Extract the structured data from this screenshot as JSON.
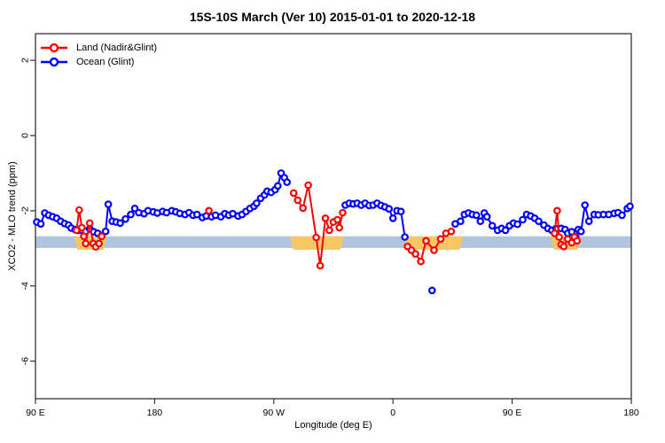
{
  "chart_data": {
    "type": "line",
    "title": "15S-10S March (Ver 10)   2015-01-01 to 2020-12-18",
    "xlabel": "Longitude (deg E)",
    "ylabel": "XCO2 - MLO trend (ppm)",
    "xlim": [
      90,
      540
    ],
    "ylim": [
      -7,
      2.71
    ],
    "grid": false,
    "legend_position": "top-left",
    "x_ticks": [
      {
        "v": 90,
        "label": "90 E"
      },
      {
        "v": 180,
        "label": "180"
      },
      {
        "v": 270,
        "label": "90 W"
      },
      {
        "v": 360,
        "label": "0"
      },
      {
        "v": 450,
        "label": "90 E"
      },
      {
        "v": 540,
        "label": "180"
      }
    ],
    "y_ticks": [
      {
        "v": 2,
        "label": "2"
      },
      {
        "v": 0,
        "label": "0"
      },
      {
        "v": -2,
        "label": "-2"
      },
      {
        "v": -4,
        "label": "-4"
      },
      {
        "v": -6,
        "label": "-6"
      }
    ],
    "reference_band": {
      "xmin": 90,
      "xmax": 540,
      "ymin": -2.99,
      "ymax": -2.68,
      "color": "#B0C4DE"
    },
    "highlight_color": "#F6C766",
    "land_highlight_bands": [
      {
        "x0": 119,
        "x1": 144
      },
      {
        "x0": 282,
        "x1": 323
      },
      {
        "x0": 368,
        "x1": 413
      },
      {
        "x0": 479,
        "x1": 502
      }
    ],
    "series": [
      {
        "id": "land",
        "name": "Land (Nadir&Glint)",
        "color": "#FF0000",
        "segments": [
          [
            [
              121,
              -2.52
            ],
            [
              123,
              -1.98
            ],
            [
              125,
              -2.45
            ],
            [
              126.5,
              -2.68
            ],
            [
              128,
              -2.87
            ],
            [
              131,
              -2.33
            ],
            [
              133.5,
              -2.87
            ],
            [
              135.5,
              -2.96
            ],
            [
              138,
              -2.87
            ],
            [
              140,
              -2.68
            ]
          ],
          [
            [
              221,
              -2.0
            ]
          ],
          [
            [
              285,
              -1.53
            ],
            [
              288,
              -1.72
            ],
            [
              292,
              -1.93
            ],
            [
              296,
              -1.32
            ],
            [
              302,
              -2.71
            ],
            [
              305,
              -3.46
            ],
            [
              309,
              -2.2
            ],
            [
              312,
              -2.52
            ],
            [
              315,
              -2.3
            ],
            [
              318,
              -2.24
            ],
            [
              319.5,
              -2.45
            ],
            [
              322,
              -2.05
            ]
          ],
          [
            [
              371,
              -2.95
            ],
            [
              374,
              -3.05
            ],
            [
              377,
              -3.15
            ],
            [
              381,
              -3.35
            ],
            [
              385,
              -2.8
            ],
            [
              391,
              -3.05
            ],
            [
              396,
              -2.75
            ],
            [
              400,
              -2.6
            ],
            [
              404,
              -2.55
            ]
          ],
          [
            [
              482,
              -2.6
            ],
            [
              484,
              -2.0
            ],
            [
              485.5,
              -2.7
            ],
            [
              487,
              -2.9
            ],
            [
              489,
              -2.95
            ],
            [
              492,
              -2.75
            ],
            [
              495,
              -2.85
            ],
            [
              497,
              -2.7
            ],
            [
              499,
              -2.8
            ]
          ]
        ]
      },
      {
        "id": "ocean",
        "name": "Ocean (Glint)",
        "color": "#0000FF",
        "segments": [
          [
            [
              91,
              -2.3
            ],
            [
              94,
              -2.35
            ],
            [
              97,
              -2.06
            ],
            [
              100,
              -2.12
            ],
            [
              103,
              -2.16
            ],
            [
              106,
              -2.2
            ],
            [
              109,
              -2.28
            ],
            [
              112,
              -2.34
            ],
            [
              115,
              -2.38
            ],
            [
              117,
              -2.46
            ],
            [
              120,
              -2.5
            ],
            [
              122,
              -2.52
            ],
            [
              125,
              -2.52
            ],
            [
              128,
              -2.55
            ],
            [
              131,
              -2.48
            ],
            [
              134,
              -2.56
            ],
            [
              137,
              -2.6
            ],
            [
              140,
              -2.66
            ],
            [
              143,
              -2.55
            ],
            [
              145,
              -1.83
            ],
            [
              148,
              -2.28
            ],
            [
              151,
              -2.3
            ],
            [
              154,
              -2.33
            ],
            [
              158,
              -2.22
            ],
            [
              162,
              -2.1
            ],
            [
              165,
              -1.94
            ],
            [
              168,
              -2.05
            ],
            [
              172,
              -2.08
            ],
            [
              175,
              -2.0
            ],
            [
              179,
              -2.03
            ],
            [
              182,
              -2.06
            ],
            [
              186,
              -2.02
            ],
            [
              189,
              -2.05
            ],
            [
              193,
              -2.0
            ],
            [
              196,
              -2.03
            ],
            [
              199,
              -2.07
            ],
            [
              203,
              -2.1
            ],
            [
              206,
              -2.05
            ],
            [
              209,
              -2.12
            ],
            [
              212,
              -2.1
            ],
            [
              216,
              -2.18
            ],
            [
              219,
              -2.14
            ],
            [
              223,
              -2.16
            ],
            [
              226,
              -2.12
            ],
            [
              230,
              -2.16
            ],
            [
              233,
              -2.08
            ],
            [
              236,
              -2.12
            ],
            [
              239,
              -2.08
            ],
            [
              243,
              -2.14
            ],
            [
              246,
              -2.1
            ],
            [
              249,
              -2.02
            ],
            [
              252,
              -1.94
            ],
            [
              255,
              -1.88
            ],
            [
              257,
              -1.8
            ],
            [
              260,
              -1.67
            ],
            [
              263,
              -1.58
            ],
            [
              265,
              -1.48
            ],
            [
              268,
              -1.51
            ],
            [
              271,
              -1.44
            ],
            [
              273,
              -1.34
            ],
            [
              275.5,
              -1.0
            ],
            [
              278,
              -1.12
            ],
            [
              280,
              -1.24
            ]
          ],
          [
            [
              324,
              -1.85
            ],
            [
              327,
              -1.8
            ],
            [
              330,
              -1.82
            ],
            [
              333,
              -1.8
            ],
            [
              336,
              -1.85
            ],
            [
              339,
              -1.8
            ],
            [
              342,
              -1.86
            ],
            [
              345,
              -1.85
            ],
            [
              348,
              -1.8
            ],
            [
              351,
              -1.86
            ],
            [
              354,
              -1.9
            ],
            [
              357,
              -1.95
            ],
            [
              360,
              -2.2
            ],
            [
              363,
              -2.0
            ],
            [
              366,
              -2.02
            ],
            [
              369,
              -2.7
            ]
          ],
          [
            [
              389.5,
              -4.12
            ]
          ],
          [
            [
              407,
              -2.35
            ],
            [
              411,
              -2.28
            ],
            [
              414,
              -2.1
            ],
            [
              417,
              -2.06
            ],
            [
              420,
              -2.1
            ],
            [
              423,
              -2.12
            ],
            [
              426,
              -2.28
            ],
            [
              429,
              -2.06
            ],
            [
              431,
              -2.16
            ],
            [
              435,
              -2.4
            ],
            [
              439,
              -2.52
            ],
            [
              442,
              -2.47
            ],
            [
              445,
              -2.52
            ],
            [
              448,
              -2.4
            ],
            [
              451,
              -2.33
            ],
            [
              454,
              -2.36
            ],
            [
              458,
              -2.24
            ],
            [
              461,
              -2.1
            ],
            [
              464,
              -2.14
            ],
            [
              467,
              -2.2
            ],
            [
              470,
              -2.28
            ],
            [
              474,
              -2.38
            ],
            [
              477,
              -2.47
            ],
            [
              480,
              -2.52
            ],
            [
              483,
              -2.48
            ],
            [
              487,
              -2.47
            ],
            [
              490,
              -2.5
            ],
            [
              492,
              -2.6
            ],
            [
              495,
              -2.56
            ],
            [
              498,
              -2.7
            ],
            [
              500,
              -2.5
            ],
            [
              502,
              -2.55
            ],
            [
              505,
              -1.85
            ],
            [
              508,
              -2.28
            ],
            [
              512,
              -2.1
            ],
            [
              515,
              -2.11
            ],
            [
              519,
              -2.1
            ],
            [
              523,
              -2.1
            ],
            [
              527,
              -2.07
            ],
            [
              530,
              -2.05
            ],
            [
              533,
              -2.12
            ],
            [
              537,
              -1.94
            ],
            [
              539,
              -1.88
            ]
          ]
        ]
      }
    ]
  }
}
